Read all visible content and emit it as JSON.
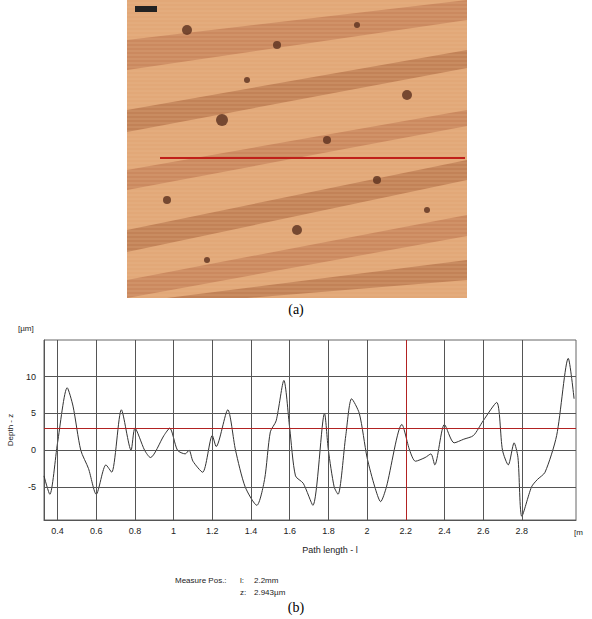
{
  "chart_data": {
    "type": "line",
    "y_unit": "[µm]",
    "y_label": "Depth - z",
    "x_label": "Path length - l",
    "x_unit": "[m",
    "color": "#333333",
    "grid": true,
    "xlim": [
      0.33,
      3.08
    ],
    "ylim": [
      -9.5,
      15
    ],
    "xticks": [
      0.4,
      0.6,
      0.8,
      1,
      1.2,
      1.4,
      1.6,
      1.8,
      2,
      2.2,
      2.4,
      2.6,
      2.8
    ],
    "yticks": [
      -5,
      0,
      5,
      10
    ],
    "x": [
      0.33,
      0.36,
      0.4,
      0.45,
      0.48,
      0.52,
      0.56,
      0.6,
      0.65,
      0.68,
      0.73,
      0.78,
      0.8,
      0.85,
      0.88,
      0.95,
      0.98,
      1.02,
      1.06,
      1.08,
      1.1,
      1.15,
      1.2,
      1.22,
      1.28,
      1.32,
      1.37,
      1.43,
      1.47,
      1.5,
      1.53,
      1.57,
      1.6,
      1.63,
      1.67,
      1.72,
      1.78,
      1.8,
      1.83,
      1.85,
      1.89,
      1.92,
      1.96,
      2.0,
      2.04,
      2.07,
      2.1,
      2.18,
      2.22,
      2.25,
      2.3,
      2.33,
      2.35,
      2.4,
      2.45,
      2.5,
      2.55,
      2.6,
      2.67,
      2.7,
      2.73,
      2.76,
      2.78,
      2.8,
      2.85,
      2.88,
      2.92,
      2.98,
      3.04,
      3.07
    ],
    "values": [
      -3.5,
      -6,
      1,
      8.5,
      6,
      0,
      -2.5,
      -6,
      -2,
      -3,
      5.5,
      0,
      3,
      0,
      -1,
      2,
      3,
      0,
      -0.5,
      0,
      -1.5,
      -3,
      2,
      0.5,
      5.5,
      0,
      -5,
      -7.5,
      -4,
      2.5,
      4,
      9.5,
      3,
      -3.5,
      -4.5,
      -7.5,
      5,
      0,
      -5,
      -6,
      2,
      7,
      5,
      -1,
      -5,
      -7,
      -5,
      3.5,
      0,
      -1.5,
      -1,
      -0.5,
      -2,
      3.5,
      1,
      1.5,
      2,
      4,
      6.5,
      0,
      -2,
      1,
      -1,
      -9,
      -5,
      -4,
      -3,
      2,
      12.5,
      7
    ],
    "measure_position": {
      "title": "Measure Pos.:",
      "l_name": "l:",
      "l": 2.2,
      "l_label": "2.2mm",
      "z_name": "z:",
      "z": 2.943,
      "z_label": "2.943µm",
      "color": "#b22222"
    }
  },
  "figure": {
    "image_caption": "(a)",
    "chart_caption": "(b)"
  }
}
